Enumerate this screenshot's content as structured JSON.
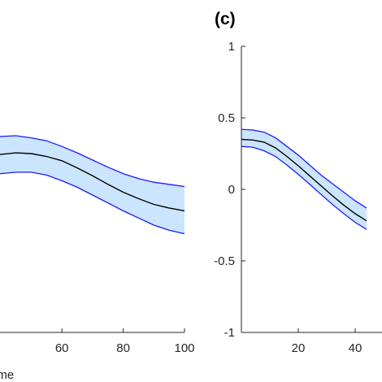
{
  "colors": {
    "band_fill": "#cce5ff",
    "band_edge": "#1a1aff",
    "mean_line": "#000000",
    "axis": "#262626"
  },
  "chart_data": [
    {
      "type": "line",
      "panel_label": "",
      "xlabel": "ame",
      "ylabel": "",
      "xlim": [
        0,
        100
      ],
      "ylim": [
        -1,
        1
      ],
      "xticks": [
        60,
        80,
        100
      ],
      "yticks": [],
      "x": [
        0,
        5,
        10,
        15,
        20,
        25,
        30,
        35,
        40,
        45,
        50,
        55,
        60,
        65,
        70,
        75,
        80,
        85,
        90,
        95,
        100
      ],
      "series": [
        {
          "role": "upper",
          "values": [
            0.29,
            0.295,
            0.3,
            0.305,
            0.31,
            0.315,
            0.325,
            0.35,
            0.37,
            0.375,
            0.36,
            0.34,
            0.3,
            0.255,
            0.205,
            0.155,
            0.11,
            0.075,
            0.05,
            0.035,
            0.02
          ]
        },
        {
          "role": "mean",
          "values": [
            0.16,
            0.165,
            0.17,
            0.175,
            0.18,
            0.19,
            0.2,
            0.22,
            0.245,
            0.255,
            0.25,
            0.23,
            0.2,
            0.15,
            0.095,
            0.035,
            -0.02,
            -0.065,
            -0.105,
            -0.13,
            -0.15
          ]
        },
        {
          "role": "lower",
          "values": [
            0.03,
            0.035,
            0.04,
            0.045,
            0.05,
            0.06,
            0.07,
            0.09,
            0.11,
            0.12,
            0.12,
            0.1,
            0.06,
            0.015,
            -0.04,
            -0.095,
            -0.15,
            -0.2,
            -0.25,
            -0.285,
            -0.31
          ]
        }
      ]
    },
    {
      "type": "line",
      "panel_label": "(c)",
      "xlabel": "",
      "ylabel": "",
      "xlim": [
        0,
        100
      ],
      "ylim": [
        -1,
        1
      ],
      "xticks": [
        20,
        40
      ],
      "yticks": [
        -1,
        -0.5,
        0,
        0.5,
        1
      ],
      "x": [
        0,
        4,
        8,
        12,
        16,
        20,
        24,
        28,
        32,
        36,
        40,
        44
      ],
      "series": [
        {
          "role": "upper",
          "values": [
            0.42,
            0.415,
            0.4,
            0.36,
            0.3,
            0.24,
            0.17,
            0.1,
            0.04,
            -0.02,
            -0.08,
            -0.13
          ]
        },
        {
          "role": "mean",
          "values": [
            0.35,
            0.345,
            0.33,
            0.29,
            0.23,
            0.165,
            0.095,
            0.025,
            -0.045,
            -0.11,
            -0.17,
            -0.22
          ]
        },
        {
          "role": "lower",
          "values": [
            0.3,
            0.295,
            0.27,
            0.23,
            0.17,
            0.105,
            0.035,
            -0.035,
            -0.105,
            -0.17,
            -0.23,
            -0.28
          ]
        }
      ]
    }
  ]
}
